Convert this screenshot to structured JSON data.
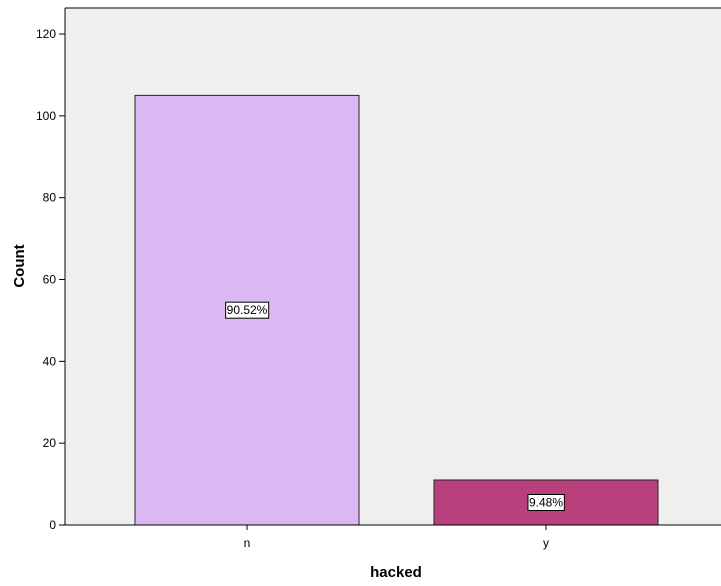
{
  "chart_data": {
    "type": "bar",
    "categories": [
      "n",
      "y"
    ],
    "values": [
      105,
      11
    ],
    "data_labels": [
      "90.52%",
      "9.48%"
    ],
    "title": "",
    "xlabel": "hacked",
    "ylabel": "Count",
    "ylim": [
      0,
      120
    ],
    "yticks": [
      0,
      20,
      40,
      60,
      80,
      100,
      120
    ],
    "grid": false,
    "legend": "none",
    "colors": {
      "plot_background": "#efefef",
      "axis": "#000000",
      "bar_borders": "#262626",
      "bars": [
        "#dcb8f2",
        "#b9407c"
      ]
    }
  }
}
